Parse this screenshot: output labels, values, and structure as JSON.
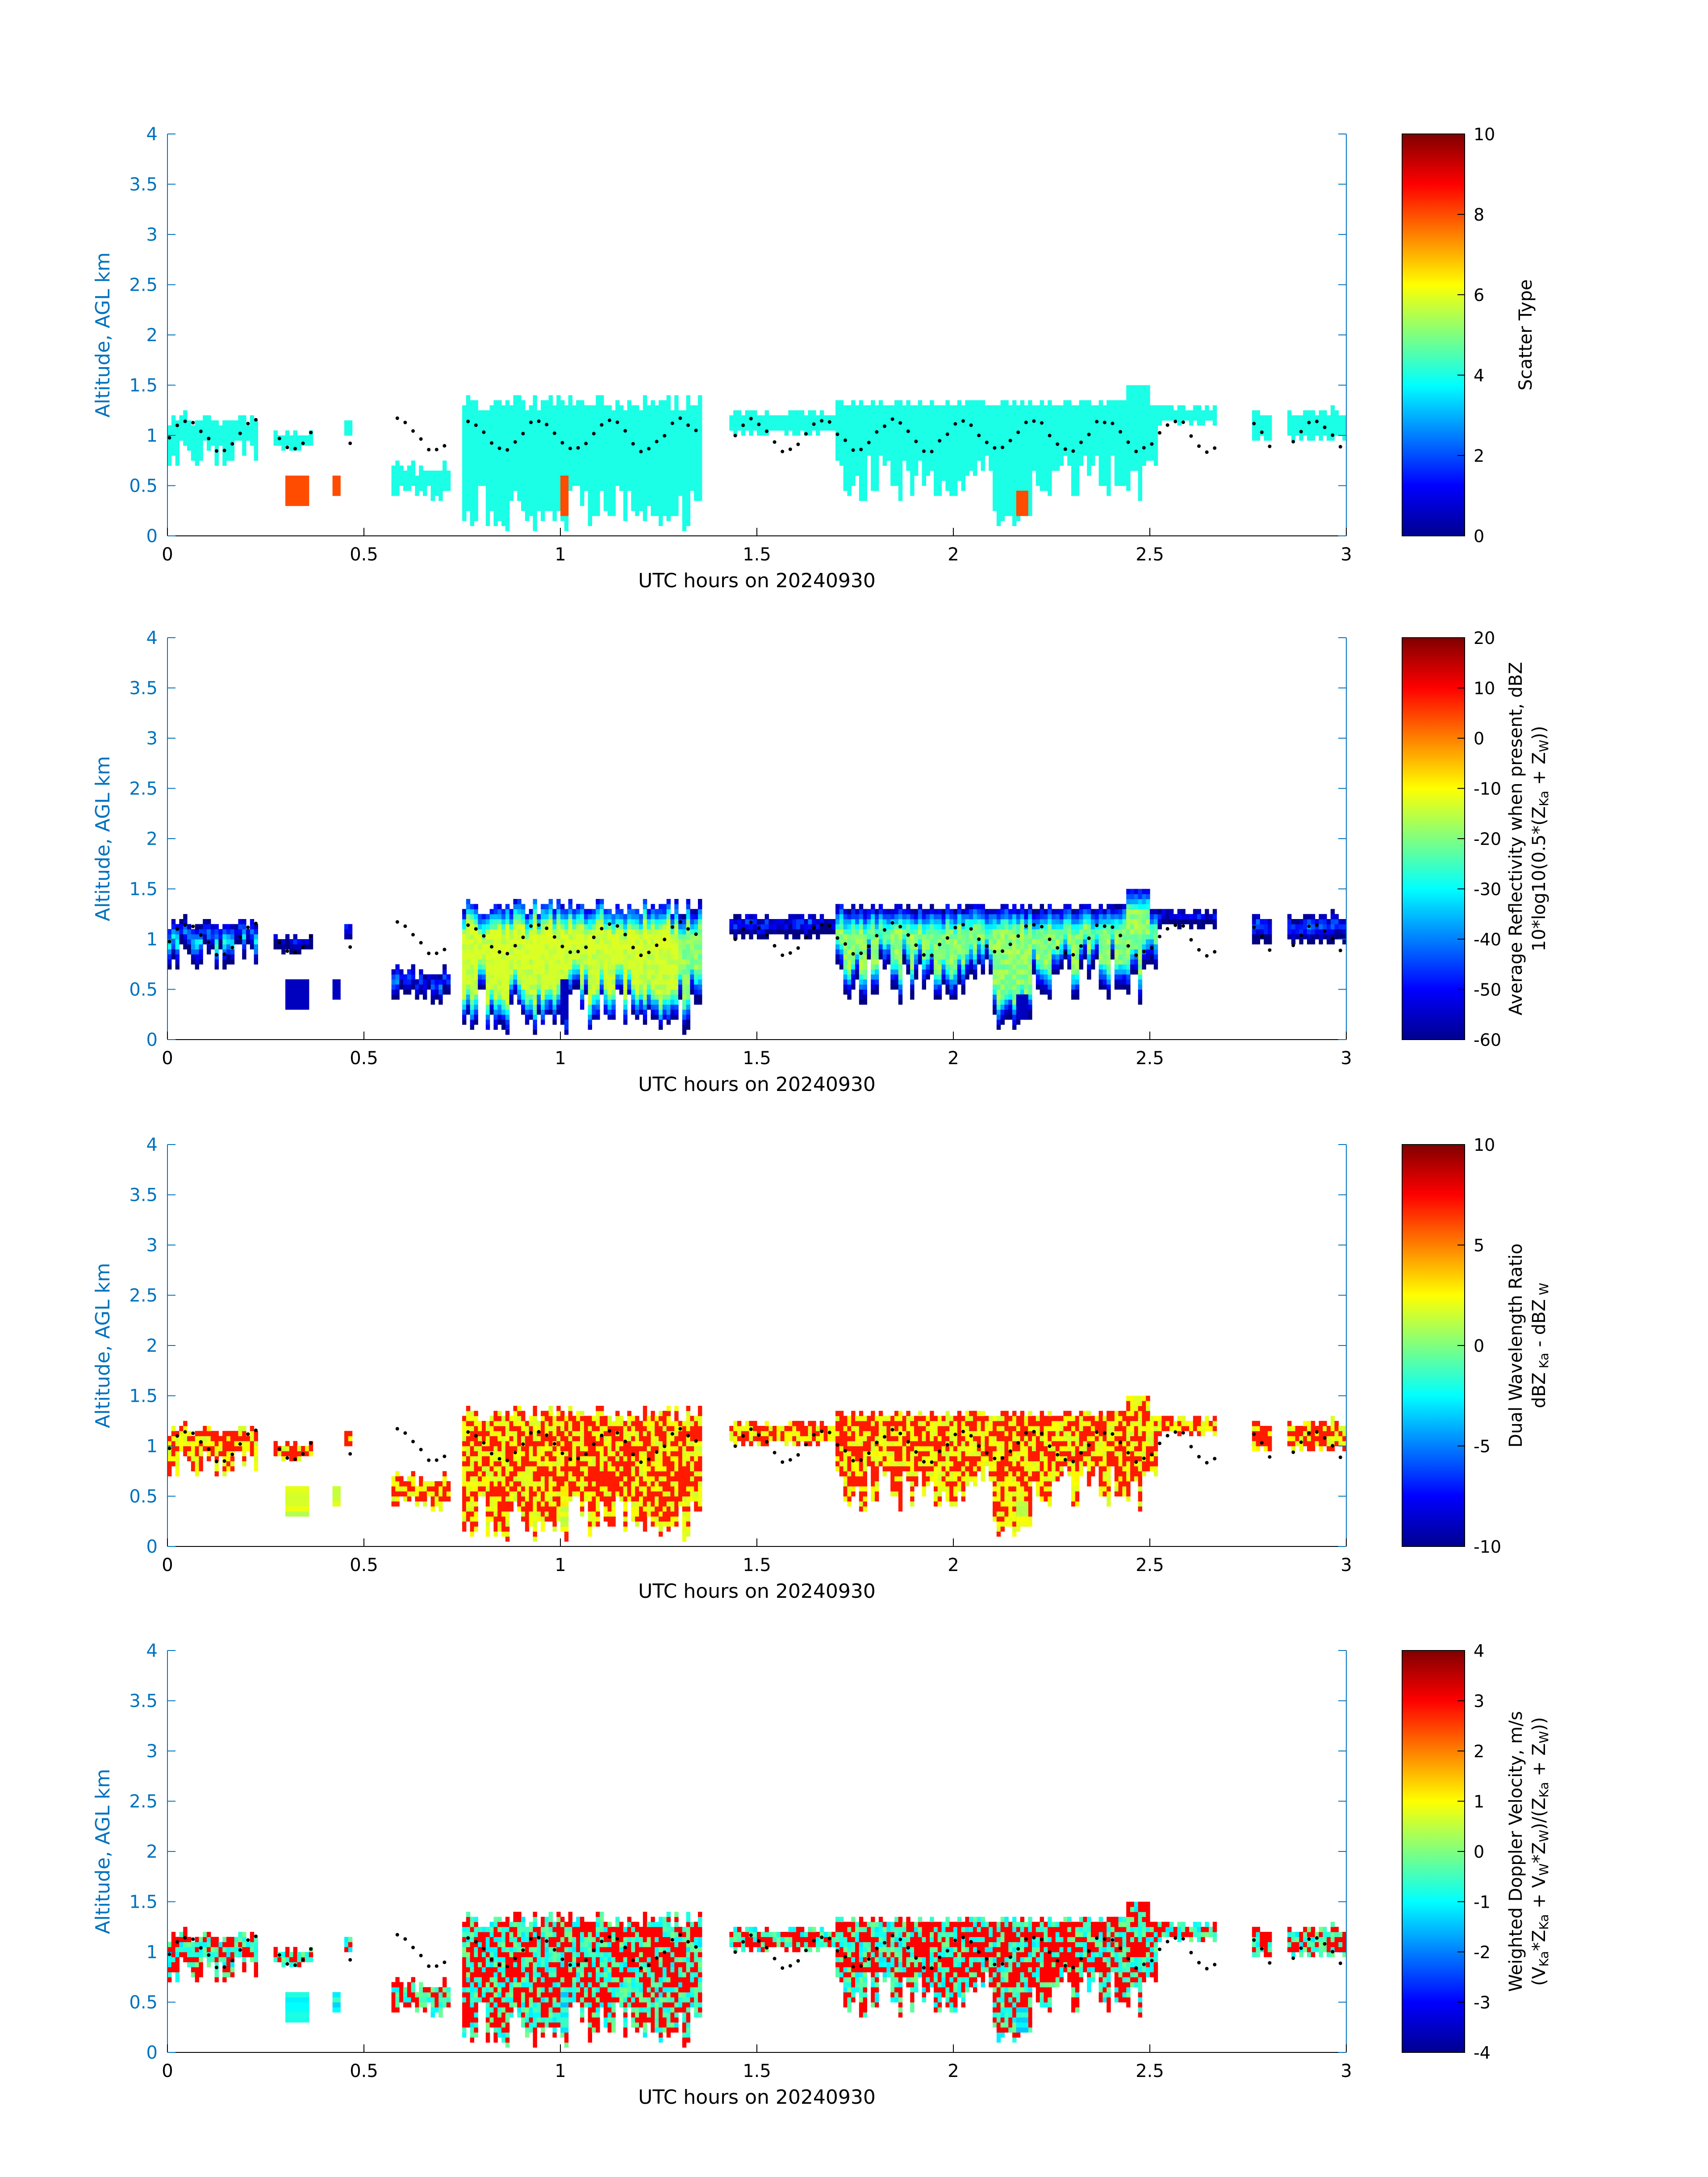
{
  "figure": {
    "xlabel": "UTC hours on 20240930",
    "ylabel": "Altitude, AGL km",
    "xticks": [
      0,
      0.5,
      1,
      1.5,
      2,
      2.5,
      3
    ],
    "yticks": [
      0,
      0.5,
      1,
      1.5,
      2,
      2.5,
      3,
      3.5,
      4
    ],
    "xlim": [
      0,
      3
    ],
    "ylim": [
      0,
      4
    ],
    "axis_color": "#0072BD",
    "colormap": "jet",
    "cloud_base_marker_color": "#000000"
  },
  "chart_data": [
    {
      "type": "heatmap",
      "panel": 1,
      "xlabel": "UTC hours on 20240930",
      "ylabel": "Altitude, AGL km",
      "colorbar_label": [
        "Scatter Type"
      ],
      "clim": [
        0,
        10
      ],
      "colorbar_ticks": [
        0,
        2,
        4,
        6,
        8,
        10
      ],
      "dominant_value": 4,
      "outlier_value": 8,
      "cloud_layer": "mostly 0.6-1.5 km, patchy",
      "overlay": "black dots marking cloud base height"
    },
    {
      "type": "heatmap",
      "panel": 2,
      "xlabel": "UTC hours on 20240930",
      "ylabel": "Altitude, AGL km",
      "colorbar_label": [
        "Average Reflectivity when present, dBZ",
        "10*log10(0.5*(Z",
        "Ka",
        " + Z",
        "W",
        "))"
      ],
      "clim": [
        -60,
        20
      ],
      "colorbar_ticks": [
        -60,
        -50,
        -40,
        -30,
        -20,
        -10,
        0,
        10,
        20
      ],
      "typical_range": [
        -60,
        -20
      ],
      "overlay": "black dots marking cloud base height"
    },
    {
      "type": "heatmap",
      "panel": 3,
      "xlabel": "UTC hours on 20240930",
      "ylabel": "Altitude, AGL km",
      "colorbar_label": [
        "Dual Wavelength Ratio",
        "dBZ",
        " Ka",
        " - dBZ",
        " W"
      ],
      "clim": [
        -10,
        10
      ],
      "colorbar_ticks": [
        -10,
        -5,
        0,
        5,
        10
      ],
      "typical_range": [
        0,
        4
      ],
      "overlay": "black dots marking cloud base height"
    },
    {
      "type": "heatmap",
      "panel": 4,
      "xlabel": "UTC hours on 20240930",
      "ylabel": "Altitude, AGL km",
      "colorbar_label": [
        "Weighted Doppler Velocity, m/s",
        "(V",
        "Ka",
        "*Z",
        "Ka",
        " + V",
        "W",
        "*Z",
        "W",
        ")/(Z",
        "Ka",
        " + Z",
        "W",
        "))"
      ],
      "clim": [
        -4,
        4
      ],
      "colorbar_ticks": [
        -4,
        -3,
        -2,
        -1,
        0,
        1,
        2,
        3,
        4
      ],
      "typical_range": [
        -1.5,
        1.5
      ],
      "overlay": "black dots marking cloud base height"
    }
  ]
}
